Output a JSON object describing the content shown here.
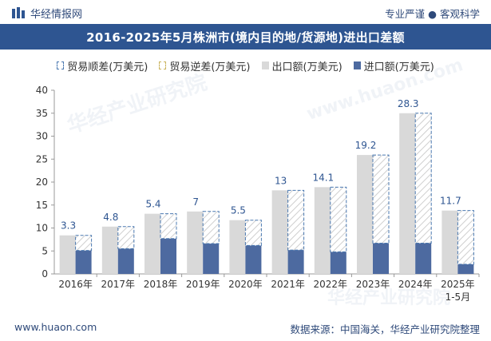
{
  "header": {
    "brand": "华经情报网",
    "tagline": "专业严谨 ● 客观科学",
    "title": "2016-2025年5月株洲市(境内目的地/货源地)进出口差额"
  },
  "legend": {
    "trade_surplus": "贸易顺差(万美元)",
    "trade_deficit": "贸易逆差(万美元)",
    "exports": "出口额(万美元)",
    "imports": "进口额(万美元)"
  },
  "footer": {
    "website": "www.huaon.com",
    "source": "数据来源：中国海关，华经产业研究院整理"
  },
  "watermark": {
    "text_cn": "华经产业研究院",
    "text_en": "www.huaon.com"
  },
  "chart_data": {
    "type": "bar",
    "categories": [
      "2016年",
      "2017年",
      "2018年",
      "2019年",
      "2020年",
      "2021年",
      "2022年",
      "2023年",
      "2024年",
      "2025年\n1-5月"
    ],
    "ylim": [
      0,
      40
    ],
    "yticks": [
      0,
      5,
      10,
      15,
      20,
      25,
      30,
      35,
      40
    ],
    "grid": false,
    "series": [
      {
        "name": "出口额(万美元)",
        "values": [
          8.4,
          10.3,
          13.1,
          13.6,
          11.7,
          18.2,
          18.9,
          25.9,
          35.0,
          13.8
        ]
      },
      {
        "name": "进口额(万美元)",
        "values": [
          5.1,
          5.5,
          7.7,
          6.6,
          6.2,
          5.2,
          4.8,
          6.7,
          6.7,
          2.1
        ]
      },
      {
        "name": "贸易顺差(万美元)",
        "values": [
          3.3,
          4.8,
          5.4,
          7,
          5.5,
          13,
          14.1,
          19.2,
          28.3,
          11.7
        ]
      }
    ],
    "colors": {
      "exports": "#d9d9d9",
      "imports": "#4d6aa0",
      "surplus_border": "#4a78b0",
      "surplus_hatch": "#c9c9c9",
      "label": "#2e5591"
    }
  }
}
